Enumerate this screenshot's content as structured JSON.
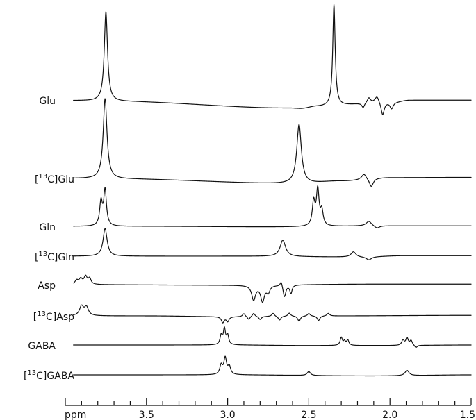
{
  "chart_data": {
    "type": "line",
    "title": "",
    "xlabel": "ppm",
    "x_reversed": true,
    "xlim": [
      4.0,
      1.5
    ],
    "x_ticks": [
      3.5,
      3.0,
      2.5,
      2.0,
      1.5
    ],
    "x_tick_labels": [
      "3.5",
      "3.0",
      "2.5",
      "2.0",
      "1.5"
    ],
    "minor_tick_step": 0.1,
    "grid": false,
    "legend": "none",
    "colors": {
      "trace": "#111111",
      "background": "#ffffff"
    },
    "series": [
      {
        "name": "Glu",
        "baseline": 0,
        "drift": [
          [
            3.95,
            0
          ],
          [
            3.7,
            -0.03
          ],
          [
            2.62,
            -0.28
          ],
          [
            2.55,
            -0.3
          ],
          [
            2.45,
            -0.22
          ],
          [
            1.98,
            -0.05
          ],
          [
            1.88,
            0.02
          ],
          [
            1.5,
            0.02
          ]
        ],
        "peaks": [
          {
            "ppm": 3.75,
            "height": 3.4,
            "width": 0.012
          },
          {
            "ppm": 2.345,
            "height": 3.85,
            "width": 0.009
          },
          {
            "ppm": 2.165,
            "height": -0.18,
            "width": 0.01
          },
          {
            "ppm": 2.13,
            "height": 0.2,
            "width": 0.012
          },
          {
            "ppm": 2.08,
            "height": 0.25,
            "width": 0.015
          },
          {
            "ppm": 2.045,
            "height": -0.5,
            "width": 0.012
          },
          {
            "ppm": 1.99,
            "height": -0.25,
            "width": 0.012
          }
        ]
      },
      {
        "name": "[13C]Glu",
        "baseline": 0,
        "drift": [
          [
            3.95,
            0
          ],
          [
            3.7,
            -0.02
          ],
          [
            2.55,
            -0.2
          ],
          [
            2.3,
            -0.1
          ],
          [
            2.0,
            0.03
          ],
          [
            1.5,
            0.04
          ]
        ],
        "peaks": [
          {
            "ppm": 3.755,
            "height": 3.05,
            "width": 0.014
          },
          {
            "ppm": 2.56,
            "height": 2.25,
            "width": 0.017
          },
          {
            "ppm": 2.16,
            "height": 0.22,
            "width": 0.018
          },
          {
            "ppm": 2.115,
            "height": -0.32,
            "width": 0.015
          }
        ]
      },
      {
        "name": "Gln",
        "baseline": 0,
        "drift": [
          [
            3.95,
            0
          ],
          [
            3.5,
            0
          ],
          [
            2.7,
            -0.02
          ],
          [
            2.0,
            0.02
          ],
          [
            1.5,
            0.02
          ]
        ],
        "peaks": [
          {
            "ppm": 3.78,
            "height": 0.9,
            "width": 0.01
          },
          {
            "ppm": 3.755,
            "height": 1.35,
            "width": 0.01
          },
          {
            "ppm": 2.47,
            "height": 0.9,
            "width": 0.01
          },
          {
            "ppm": 2.445,
            "height": 1.35,
            "width": 0.01
          },
          {
            "ppm": 2.42,
            "height": 0.55,
            "width": 0.01
          },
          {
            "ppm": 2.13,
            "height": 0.18,
            "width": 0.02
          },
          {
            "ppm": 2.08,
            "height": -0.1,
            "width": 0.02
          }
        ]
      },
      {
        "name": "[13C]Gln",
        "baseline": 0,
        "drift": [
          [
            3.95,
            0
          ],
          [
            3.0,
            0
          ],
          [
            2.2,
            -0.03
          ],
          [
            1.9,
            0.02
          ],
          [
            1.5,
            0.02
          ]
        ],
        "peaks": [
          {
            "ppm": 3.755,
            "height": 1.05,
            "width": 0.015
          },
          {
            "ppm": 2.66,
            "height": 0.62,
            "width": 0.02
          },
          {
            "ppm": 2.225,
            "height": 0.2,
            "width": 0.018
          },
          {
            "ppm": 2.13,
            "height": -0.12,
            "width": 0.02
          }
        ]
      },
      {
        "name": "Asp",
        "baseline": 0,
        "drift": [
          [
            3.98,
            0
          ],
          [
            3.0,
            -0.02
          ],
          [
            2.1,
            0.02
          ],
          [
            1.5,
            0.02
          ]
        ],
        "peaks": [
          {
            "ppm": 3.93,
            "height": 0.15,
            "width": 0.012
          },
          {
            "ppm": 3.905,
            "height": 0.2,
            "width": 0.012
          },
          {
            "ppm": 3.875,
            "height": 0.3,
            "width": 0.012
          },
          {
            "ppm": 3.85,
            "height": 0.22,
            "width": 0.01
          },
          {
            "ppm": 2.84,
            "height": -0.55,
            "width": 0.014
          },
          {
            "ppm": 2.785,
            "height": -0.6,
            "width": 0.014
          },
          {
            "ppm": 2.75,
            "height": -0.25,
            "width": 0.012
          },
          {
            "ppm": 2.67,
            "height": 0.2,
            "width": 0.008
          },
          {
            "ppm": 2.65,
            "height": -0.45,
            "width": 0.01
          },
          {
            "ppm": 2.61,
            "height": -0.32,
            "width": 0.008
          }
        ]
      },
      {
        "name": "[13C]Asp",
        "baseline": 0,
        "drift": [
          [
            3.98,
            0
          ],
          [
            3.5,
            0
          ],
          [
            3.0,
            -0.03
          ],
          [
            2.4,
            0
          ],
          [
            1.5,
            0.02
          ]
        ],
        "peaks": [
          {
            "ppm": 3.9,
            "height": 0.35,
            "width": 0.015
          },
          {
            "ppm": 3.87,
            "height": 0.32,
            "width": 0.015
          },
          {
            "ppm": 3.03,
            "height": -0.22,
            "width": 0.01
          },
          {
            "ppm": 3.0,
            "height": -0.18,
            "width": 0.01
          },
          {
            "ppm": 2.9,
            "height": 0.12,
            "width": 0.01
          },
          {
            "ppm": 2.87,
            "height": -0.12,
            "width": 0.01
          },
          {
            "ppm": 2.84,
            "height": 0.13,
            "width": 0.01
          },
          {
            "ppm": 2.8,
            "height": -0.12,
            "width": 0.01
          },
          {
            "ppm": 2.72,
            "height": 0.12,
            "width": 0.01
          },
          {
            "ppm": 2.68,
            "height": -0.15,
            "width": 0.01
          },
          {
            "ppm": 2.62,
            "height": 0.12,
            "width": 0.01
          },
          {
            "ppm": 2.56,
            "height": -0.2,
            "width": 0.01
          },
          {
            "ppm": 2.5,
            "height": 0.1,
            "width": 0.01
          },
          {
            "ppm": 2.44,
            "height": -0.18,
            "width": 0.01
          },
          {
            "ppm": 2.38,
            "height": 0.1,
            "width": 0.01
          }
        ]
      },
      {
        "name": "GABA",
        "baseline": 0,
        "drift": [
          [
            3.98,
            0
          ],
          [
            3.0,
            0
          ],
          [
            2.5,
            -0.02
          ],
          [
            2.0,
            -0.02
          ],
          [
            1.5,
            0
          ]
        ],
        "peaks": [
          {
            "ppm": 3.04,
            "height": 0.35,
            "width": 0.008
          },
          {
            "ppm": 3.02,
            "height": 0.6,
            "width": 0.008
          },
          {
            "ppm": 3.0,
            "height": 0.35,
            "width": 0.008
          },
          {
            "ppm": 2.3,
            "height": 0.3,
            "width": 0.008
          },
          {
            "ppm": 2.28,
            "height": 0.15,
            "width": 0.008
          },
          {
            "ppm": 2.26,
            "height": 0.2,
            "width": 0.008
          },
          {
            "ppm": 1.92,
            "height": 0.2,
            "width": 0.009
          },
          {
            "ppm": 1.895,
            "height": 0.28,
            "width": 0.009
          },
          {
            "ppm": 1.87,
            "height": 0.18,
            "width": 0.009
          },
          {
            "ppm": 1.84,
            "height": -0.1,
            "width": 0.01
          }
        ]
      },
      {
        "name": "[13C]GABA",
        "baseline": 0,
        "drift": [
          [
            3.98,
            0
          ],
          [
            3.0,
            0
          ],
          [
            2.1,
            -0.04
          ],
          [
            1.5,
            0
          ]
        ],
        "peaks": [
          {
            "ppm": 3.04,
            "height": 0.35,
            "width": 0.01
          },
          {
            "ppm": 3.015,
            "height": 0.62,
            "width": 0.01
          },
          {
            "ppm": 2.99,
            "height": 0.3,
            "width": 0.01
          },
          {
            "ppm": 2.5,
            "height": 0.15,
            "width": 0.012
          },
          {
            "ppm": 1.895,
            "height": 0.2,
            "width": 0.015
          }
        ]
      }
    ]
  }
}
